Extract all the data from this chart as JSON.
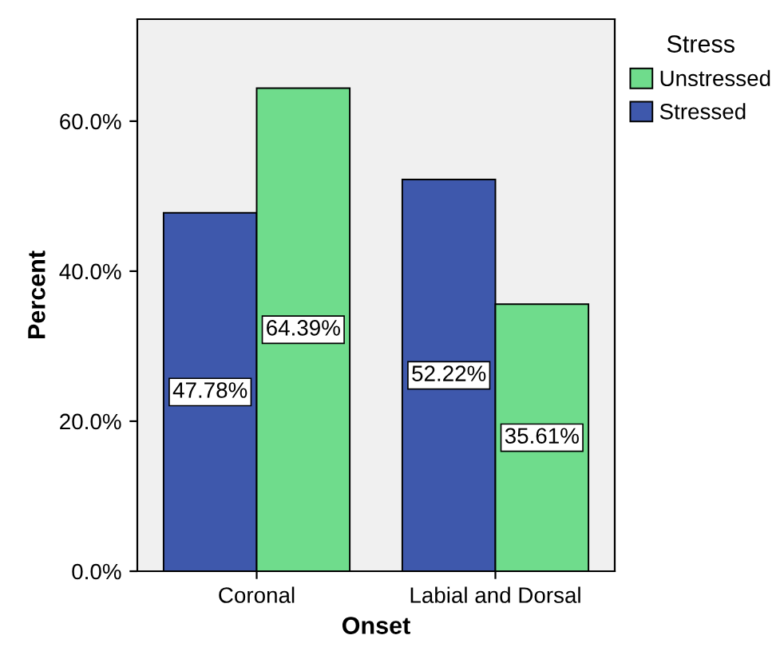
{
  "chart_data": {
    "type": "bar",
    "xlabel": "Onset",
    "ylabel": "Percent",
    "legend_title": "Stress",
    "categories": [
      "Coronal",
      "Labial and Dorsal"
    ],
    "series": [
      {
        "name": "Stressed",
        "color": "#3e58ac",
        "values": [
          47.78,
          52.22
        ],
        "value_labels": [
          "47.78%",
          "52.22%"
        ]
      },
      {
        "name": "Unstressed",
        "color": "#6fdc8c",
        "values": [
          64.39,
          35.61
        ],
        "value_labels": [
          "64.39%",
          "35.61%"
        ]
      }
    ],
    "ylim": [
      0,
      73.6
    ],
    "yticks": [
      {
        "value": 0,
        "label": "0.0%"
      },
      {
        "value": 20,
        "label": "20.0%"
      },
      {
        "value": 40,
        "label": "40.0%"
      },
      {
        "value": 60,
        "label": "60.0%"
      }
    ],
    "grid": false,
    "legend": "top right"
  }
}
